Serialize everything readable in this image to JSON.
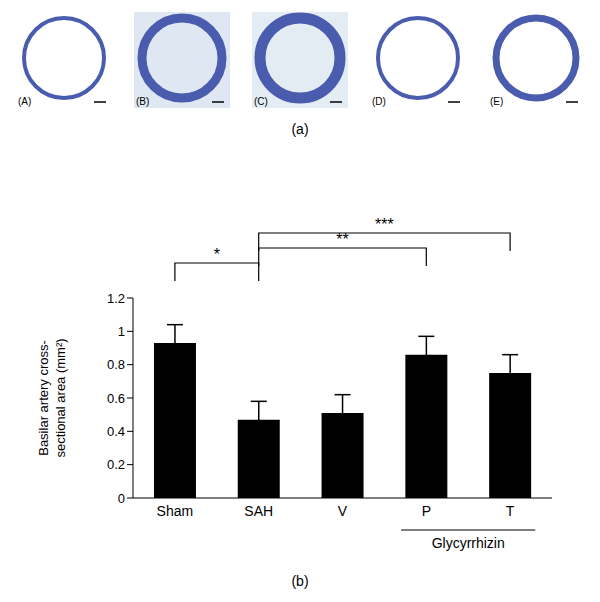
{
  "chart_data": {
    "type": "bar",
    "categories": [
      "Sham",
      "SAH",
      "V",
      "P",
      "T"
    ],
    "values": [
      0.93,
      0.47,
      0.51,
      0.86,
      0.75
    ],
    "error": [
      0.11,
      0.11,
      0.11,
      0.11,
      0.11
    ],
    "color": "#000000",
    "ylim": [
      0,
      1.2
    ],
    "yticks": [
      0,
      0.2,
      0.4,
      0.6,
      0.8,
      1,
      1.2
    ],
    "y_label": "Basilar artery cross-sectional area (mm²)",
    "group_label": {
      "label": "Glycyrrhizin",
      "categories": [
        "P",
        "T"
      ]
    },
    "significance": [
      {
        "from": "Sham",
        "to": "SAH",
        "label": "*"
      },
      {
        "from": "SAH",
        "to": "P",
        "label": "**"
      },
      {
        "from": "SAH",
        "to": "T",
        "label": "***"
      }
    ],
    "panel_label": "(b)",
    "grid": false
  },
  "panel_a": {
    "label": "(a)",
    "images": [
      "(A)",
      "(B)",
      "(C)",
      "(D)",
      "(E)"
    ]
  }
}
